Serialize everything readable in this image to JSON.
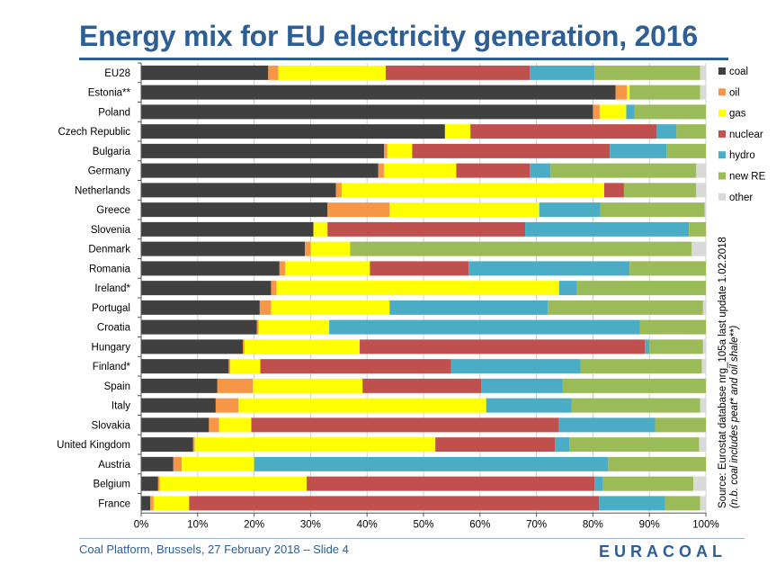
{
  "chart_data": {
    "type": "bar",
    "orientation": "horizontal",
    "stacked": true,
    "title": "Energy mix for EU electricity generation, 2016",
    "xlabel": "",
    "ylabel": "",
    "xlim": [
      0,
      100
    ],
    "x_ticks": [
      "0%",
      "10%",
      "20%",
      "30%",
      "40%",
      "50%",
      "60%",
      "70%",
      "80%",
      "90%",
      "100%"
    ],
    "legend_position": "right",
    "categories": [
      "EU28",
      "Estonia**",
      "Poland",
      "Czech Republic",
      "Bulgaria",
      "Germany",
      "Netherlands",
      "Greece",
      "Slovenia",
      "Denmark",
      "Romania",
      "Ireland*",
      "Portugal",
      "Croatia",
      "Hungary",
      "Finland*",
      "Spain",
      "Italy",
      "Slovakia",
      "United Kingdom",
      "Austria",
      "Belgium",
      "France"
    ],
    "series": [
      {
        "name": "coal",
        "color": "#404040",
        "values": [
          22.5,
          84,
          80,
          53.8,
          43,
          42,
          34.5,
          33,
          30.5,
          29,
          24.5,
          23,
          21,
          20.5,
          18,
          15.5,
          13.5,
          13.2,
          12,
          9.2,
          5.7,
          3,
          1.6
        ]
      },
      {
        "name": "oil",
        "color": "#f79646",
        "values": [
          1.8,
          2,
          1.2,
          0,
          0.6,
          1,
          1,
          11,
          0,
          1,
          1,
          1,
          2,
          0.3,
          0.3,
          0.3,
          6.3,
          4,
          1.8,
          0.3,
          1.5,
          0.3,
          0.6
        ]
      },
      {
        "name": "gas",
        "color": "#ffff00",
        "values": [
          19,
          0.5,
          4.7,
          4.5,
          4.4,
          12.8,
          46.5,
          26.5,
          2.5,
          7,
          15,
          50,
          21,
          12.5,
          20.4,
          5.3,
          19.4,
          43.9,
          5.7,
          42.6,
          12.8,
          26,
          6.3
        ]
      },
      {
        "name": "nuclear",
        "color": "#c0504d",
        "values": [
          25.5,
          0,
          0,
          33,
          35,
          13,
          3.5,
          0,
          35,
          0,
          17.5,
          0,
          0,
          0,
          50.5,
          33.8,
          21,
          0,
          54.5,
          21.2,
          0,
          51,
          72.6
        ]
      },
      {
        "name": "hydro",
        "color": "#4bacc6",
        "values": [
          11.5,
          0,
          1.5,
          3.5,
          10,
          3.7,
          0,
          10.8,
          29,
          0,
          28.5,
          3.2,
          28,
          55,
          0.8,
          22.9,
          14.4,
          15.1,
          17,
          2.5,
          62.7,
          1.5,
          11.7
        ]
      },
      {
        "name": "new RE",
        "color": "#9bbb59",
        "values": [
          18.7,
          12.5,
          12.6,
          5.2,
          7,
          25.8,
          12.8,
          18.5,
          3,
          60.5,
          13.5,
          22.8,
          27.5,
          11.7,
          9.5,
          21.5,
          25.4,
          22.8,
          9,
          23,
          17.3,
          16,
          6.2
        ]
      },
      {
        "name": "other",
        "color": "#d9d9d9",
        "values": [
          1,
          1,
          0,
          0,
          0,
          1.7,
          1.7,
          0.2,
          0,
          2.5,
          0,
          0,
          0.5,
          0,
          0.5,
          0.7,
          0,
          1,
          0,
          1.2,
          0,
          2.2,
          1
        ]
      }
    ]
  },
  "source": {
    "line1": "Source:  Eurostat database nrg_105a last update 1.02.2018",
    "line2": "(n.b. coal includes peat* and oil shale**)"
  },
  "footer": {
    "text": "Coal Platform, Brussels, 27 February 2018  – Slide 4",
    "logo": "EURACOAL"
  }
}
